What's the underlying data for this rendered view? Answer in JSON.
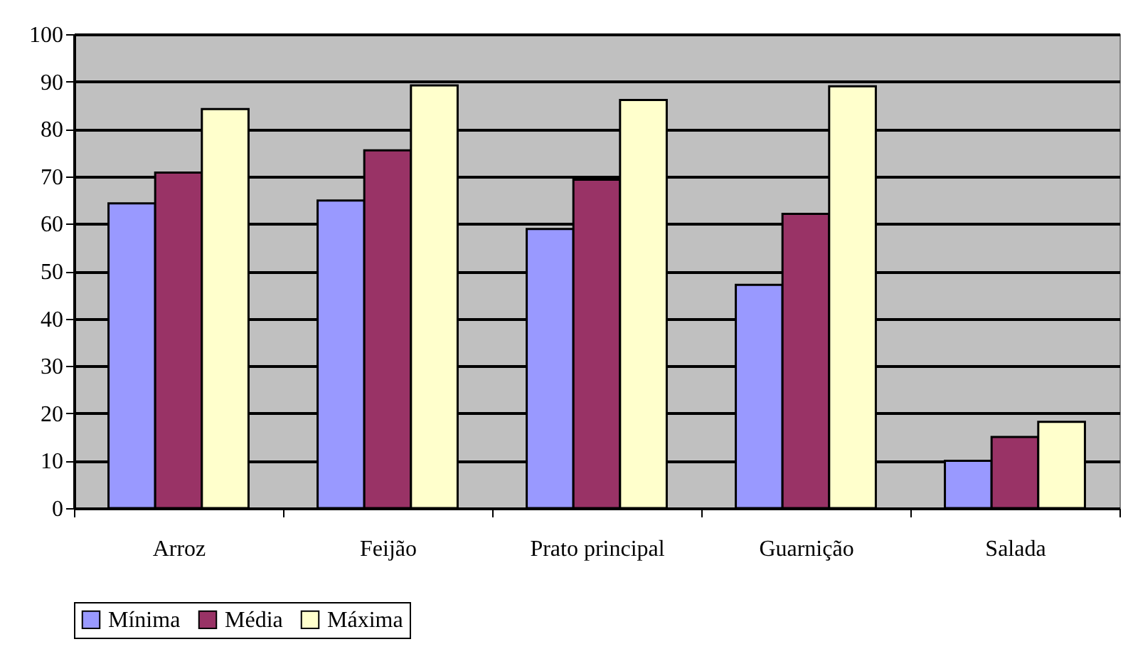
{
  "chart_data": {
    "type": "bar",
    "categories": [
      "Arroz",
      "Feijão",
      "Prato principal",
      "Guarnição",
      "Salada"
    ],
    "series": [
      {
        "name": "Mínima",
        "color": "#9999ff",
        "values": [
          64.3,
          64.9,
          58.9,
          47.1,
          10
        ]
      },
      {
        "name": "Média",
        "color": "#993366",
        "values": [
          70.8,
          75.5,
          69.3,
          62.1,
          15
        ]
      },
      {
        "name": "Máxima",
        "color": "#ffffcc",
        "values": [
          84.2,
          89.2,
          86.1,
          89,
          18.2
        ]
      }
    ],
    "ylim": [
      0,
      100
    ],
    "yticks": [
      0,
      10,
      20,
      30,
      40,
      50,
      60,
      70,
      80,
      90,
      100
    ],
    "grid": "y",
    "legend": "bottom"
  }
}
